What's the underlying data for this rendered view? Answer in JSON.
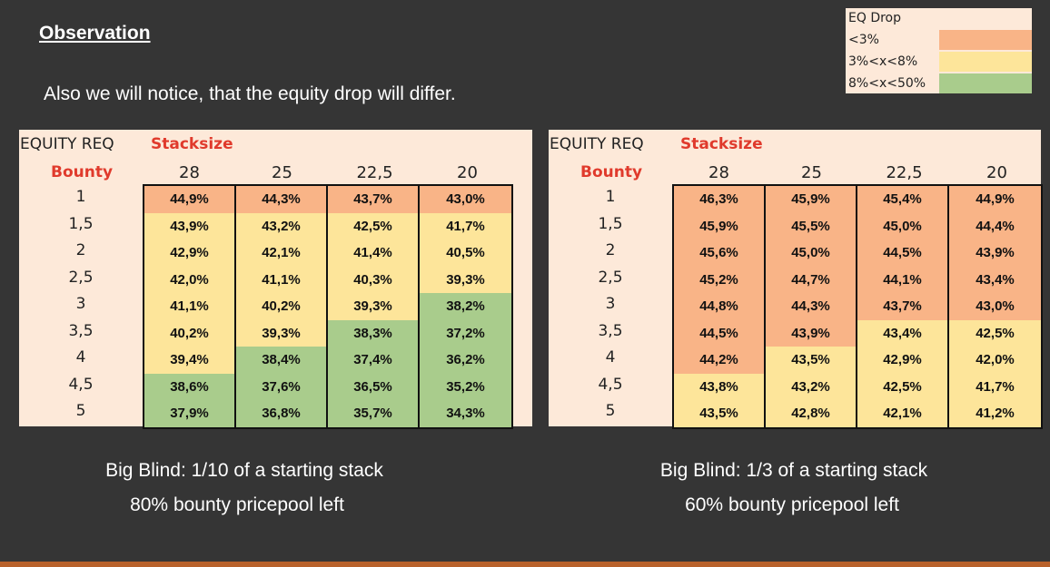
{
  "slide": {
    "heading": "Observation",
    "intro": "Also we will notice, that the equity drop will differ."
  },
  "legend": {
    "title": "EQ Drop",
    "items": [
      {
        "label": "<3%",
        "color": "#f9b487"
      },
      {
        "label": "3%<x<8%",
        "color": "#fde59a"
      },
      {
        "label": "8%<x<50%",
        "color": "#a9cc8c"
      }
    ]
  },
  "colors": {
    "orange": "#f9b487",
    "yellow": "#fde59a",
    "green": "#a9cc8c",
    "table_bg": "#fde9d9"
  },
  "tables": [
    {
      "corner": "EQUITY REQ",
      "stack_label": "Stacksize",
      "bounty_label": "Bounty",
      "stacks": [
        "28",
        "25",
        "22,5",
        "20"
      ],
      "bounties": [
        "1",
        "1,5",
        "2",
        "2,5",
        "3",
        "3,5",
        "4",
        "4,5",
        "5"
      ],
      "rows": [
        [
          {
            "v": "44,9%",
            "c": "orange"
          },
          {
            "v": "44,3%",
            "c": "orange"
          },
          {
            "v": "43,7%",
            "c": "orange"
          },
          {
            "v": "43,0%",
            "c": "orange"
          }
        ],
        [
          {
            "v": "43,9%",
            "c": "yellow"
          },
          {
            "v": "43,2%",
            "c": "yellow"
          },
          {
            "v": "42,5%",
            "c": "yellow"
          },
          {
            "v": "41,7%",
            "c": "yellow"
          }
        ],
        [
          {
            "v": "42,9%",
            "c": "yellow"
          },
          {
            "v": "42,1%",
            "c": "yellow"
          },
          {
            "v": "41,4%",
            "c": "yellow"
          },
          {
            "v": "40,5%",
            "c": "yellow"
          }
        ],
        [
          {
            "v": "42,0%",
            "c": "yellow"
          },
          {
            "v": "41,1%",
            "c": "yellow"
          },
          {
            "v": "40,3%",
            "c": "yellow"
          },
          {
            "v": "39,3%",
            "c": "yellow"
          }
        ],
        [
          {
            "v": "41,1%",
            "c": "yellow"
          },
          {
            "v": "40,2%",
            "c": "yellow"
          },
          {
            "v": "39,3%",
            "c": "yellow"
          },
          {
            "v": "38,2%",
            "c": "green"
          }
        ],
        [
          {
            "v": "40,2%",
            "c": "yellow"
          },
          {
            "v": "39,3%",
            "c": "yellow"
          },
          {
            "v": "38,3%",
            "c": "green"
          },
          {
            "v": "37,2%",
            "c": "green"
          }
        ],
        [
          {
            "v": "39,4%",
            "c": "yellow"
          },
          {
            "v": "38,4%",
            "c": "green"
          },
          {
            "v": "37,4%",
            "c": "green"
          },
          {
            "v": "36,2%",
            "c": "green"
          }
        ],
        [
          {
            "v": "38,6%",
            "c": "green"
          },
          {
            "v": "37,6%",
            "c": "green"
          },
          {
            "v": "36,5%",
            "c": "green"
          },
          {
            "v": "35,2%",
            "c": "green"
          }
        ],
        [
          {
            "v": "37,9%",
            "c": "green"
          },
          {
            "v": "36,8%",
            "c": "green"
          },
          {
            "v": "35,7%",
            "c": "green"
          },
          {
            "v": "34,3%",
            "c": "green"
          }
        ]
      ],
      "caption_1": "Big Blind: 1/10 of a starting stack",
      "caption_2": "80% bounty pricepool left"
    },
    {
      "corner": "EQUITY REQ",
      "stack_label": "Stacksize",
      "bounty_label": "Bounty",
      "stacks": [
        "28",
        "25",
        "22,5",
        "20"
      ],
      "bounties": [
        "1",
        "1,5",
        "2",
        "2,5",
        "3",
        "3,5",
        "4",
        "4,5",
        "5"
      ],
      "rows": [
        [
          {
            "v": "46,3%",
            "c": "orange"
          },
          {
            "v": "45,9%",
            "c": "orange"
          },
          {
            "v": "45,4%",
            "c": "orange"
          },
          {
            "v": "44,9%",
            "c": "orange"
          }
        ],
        [
          {
            "v": "45,9%",
            "c": "orange"
          },
          {
            "v": "45,5%",
            "c": "orange"
          },
          {
            "v": "45,0%",
            "c": "orange"
          },
          {
            "v": "44,4%",
            "c": "orange"
          }
        ],
        [
          {
            "v": "45,6%",
            "c": "orange"
          },
          {
            "v": "45,0%",
            "c": "orange"
          },
          {
            "v": "44,5%",
            "c": "orange"
          },
          {
            "v": "43,9%",
            "c": "orange"
          }
        ],
        [
          {
            "v": "45,2%",
            "c": "orange"
          },
          {
            "v": "44,7%",
            "c": "orange"
          },
          {
            "v": "44,1%",
            "c": "orange"
          },
          {
            "v": "43,4%",
            "c": "orange"
          }
        ],
        [
          {
            "v": "44,8%",
            "c": "orange"
          },
          {
            "v": "44,3%",
            "c": "orange"
          },
          {
            "v": "43,7%",
            "c": "orange"
          },
          {
            "v": "43,0%",
            "c": "orange"
          }
        ],
        [
          {
            "v": "44,5%",
            "c": "orange"
          },
          {
            "v": "43,9%",
            "c": "orange"
          },
          {
            "v": "43,4%",
            "c": "yellow"
          },
          {
            "v": "42,5%",
            "c": "yellow"
          }
        ],
        [
          {
            "v": "44,2%",
            "c": "orange"
          },
          {
            "v": "43,5%",
            "c": "yellow"
          },
          {
            "v": "42,9%",
            "c": "yellow"
          },
          {
            "v": "42,0%",
            "c": "yellow"
          }
        ],
        [
          {
            "v": "43,8%",
            "c": "yellow"
          },
          {
            "v": "43,2%",
            "c": "yellow"
          },
          {
            "v": "42,5%",
            "c": "yellow"
          },
          {
            "v": "41,7%",
            "c": "yellow"
          }
        ],
        [
          {
            "v": "43,5%",
            "c": "yellow"
          },
          {
            "v": "42,8%",
            "c": "yellow"
          },
          {
            "v": "42,1%",
            "c": "yellow"
          },
          {
            "v": "41,2%",
            "c": "yellow"
          }
        ]
      ],
      "caption_1": "Big Blind: 1/3 of a starting stack",
      "caption_2": "60% bounty pricepool left"
    }
  ]
}
